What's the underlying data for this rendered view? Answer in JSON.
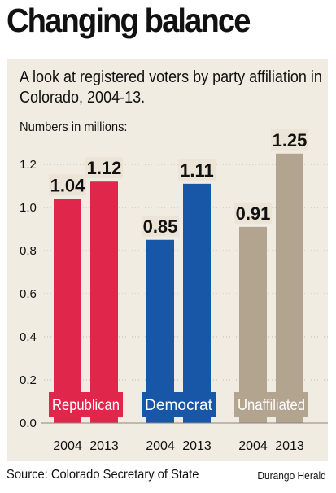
{
  "headline": "Changing balance",
  "chart_data": {
    "type": "bar",
    "title": "Changing balance",
    "subtitle": "A look at registered voters by party affiliation in Colorado, 2004-13.",
    "units_label": "Numbers in millions:",
    "xlabel": "",
    "ylabel": "",
    "ylim": [
      0,
      1.3
    ],
    "yticks": [
      "0.0",
      "0.2",
      "0.4",
      "0.6",
      "0.8",
      "1.0",
      "1.2"
    ],
    "grid": true,
    "groups": [
      {
        "name": "Republican",
        "color": "#e0264a",
        "label_bg": "#e0264a",
        "bars": [
          {
            "year": "2004",
            "value": 1.04,
            "label": "1.04"
          },
          {
            "year": "2013",
            "value": 1.12,
            "label": "1.12"
          }
        ]
      },
      {
        "name": "Democrat",
        "color": "#1856a8",
        "label_bg": "#1856a8",
        "bars": [
          {
            "year": "2004",
            "value": 0.85,
            "label": "0.85"
          },
          {
            "year": "2013",
            "value": 1.11,
            "label": "1.11"
          }
        ]
      },
      {
        "name": "Unaffiliated",
        "color": "#b3a48f",
        "label_bg": "#b3a48f",
        "bars": [
          {
            "year": "2004",
            "value": 0.91,
            "label": "0.91"
          },
          {
            "year": "2013",
            "value": 1.25,
            "label": "1.25"
          }
        ]
      }
    ]
  },
  "footer": {
    "source": "Source: Colorado Secretary of State",
    "credit": "Durango Herald"
  }
}
